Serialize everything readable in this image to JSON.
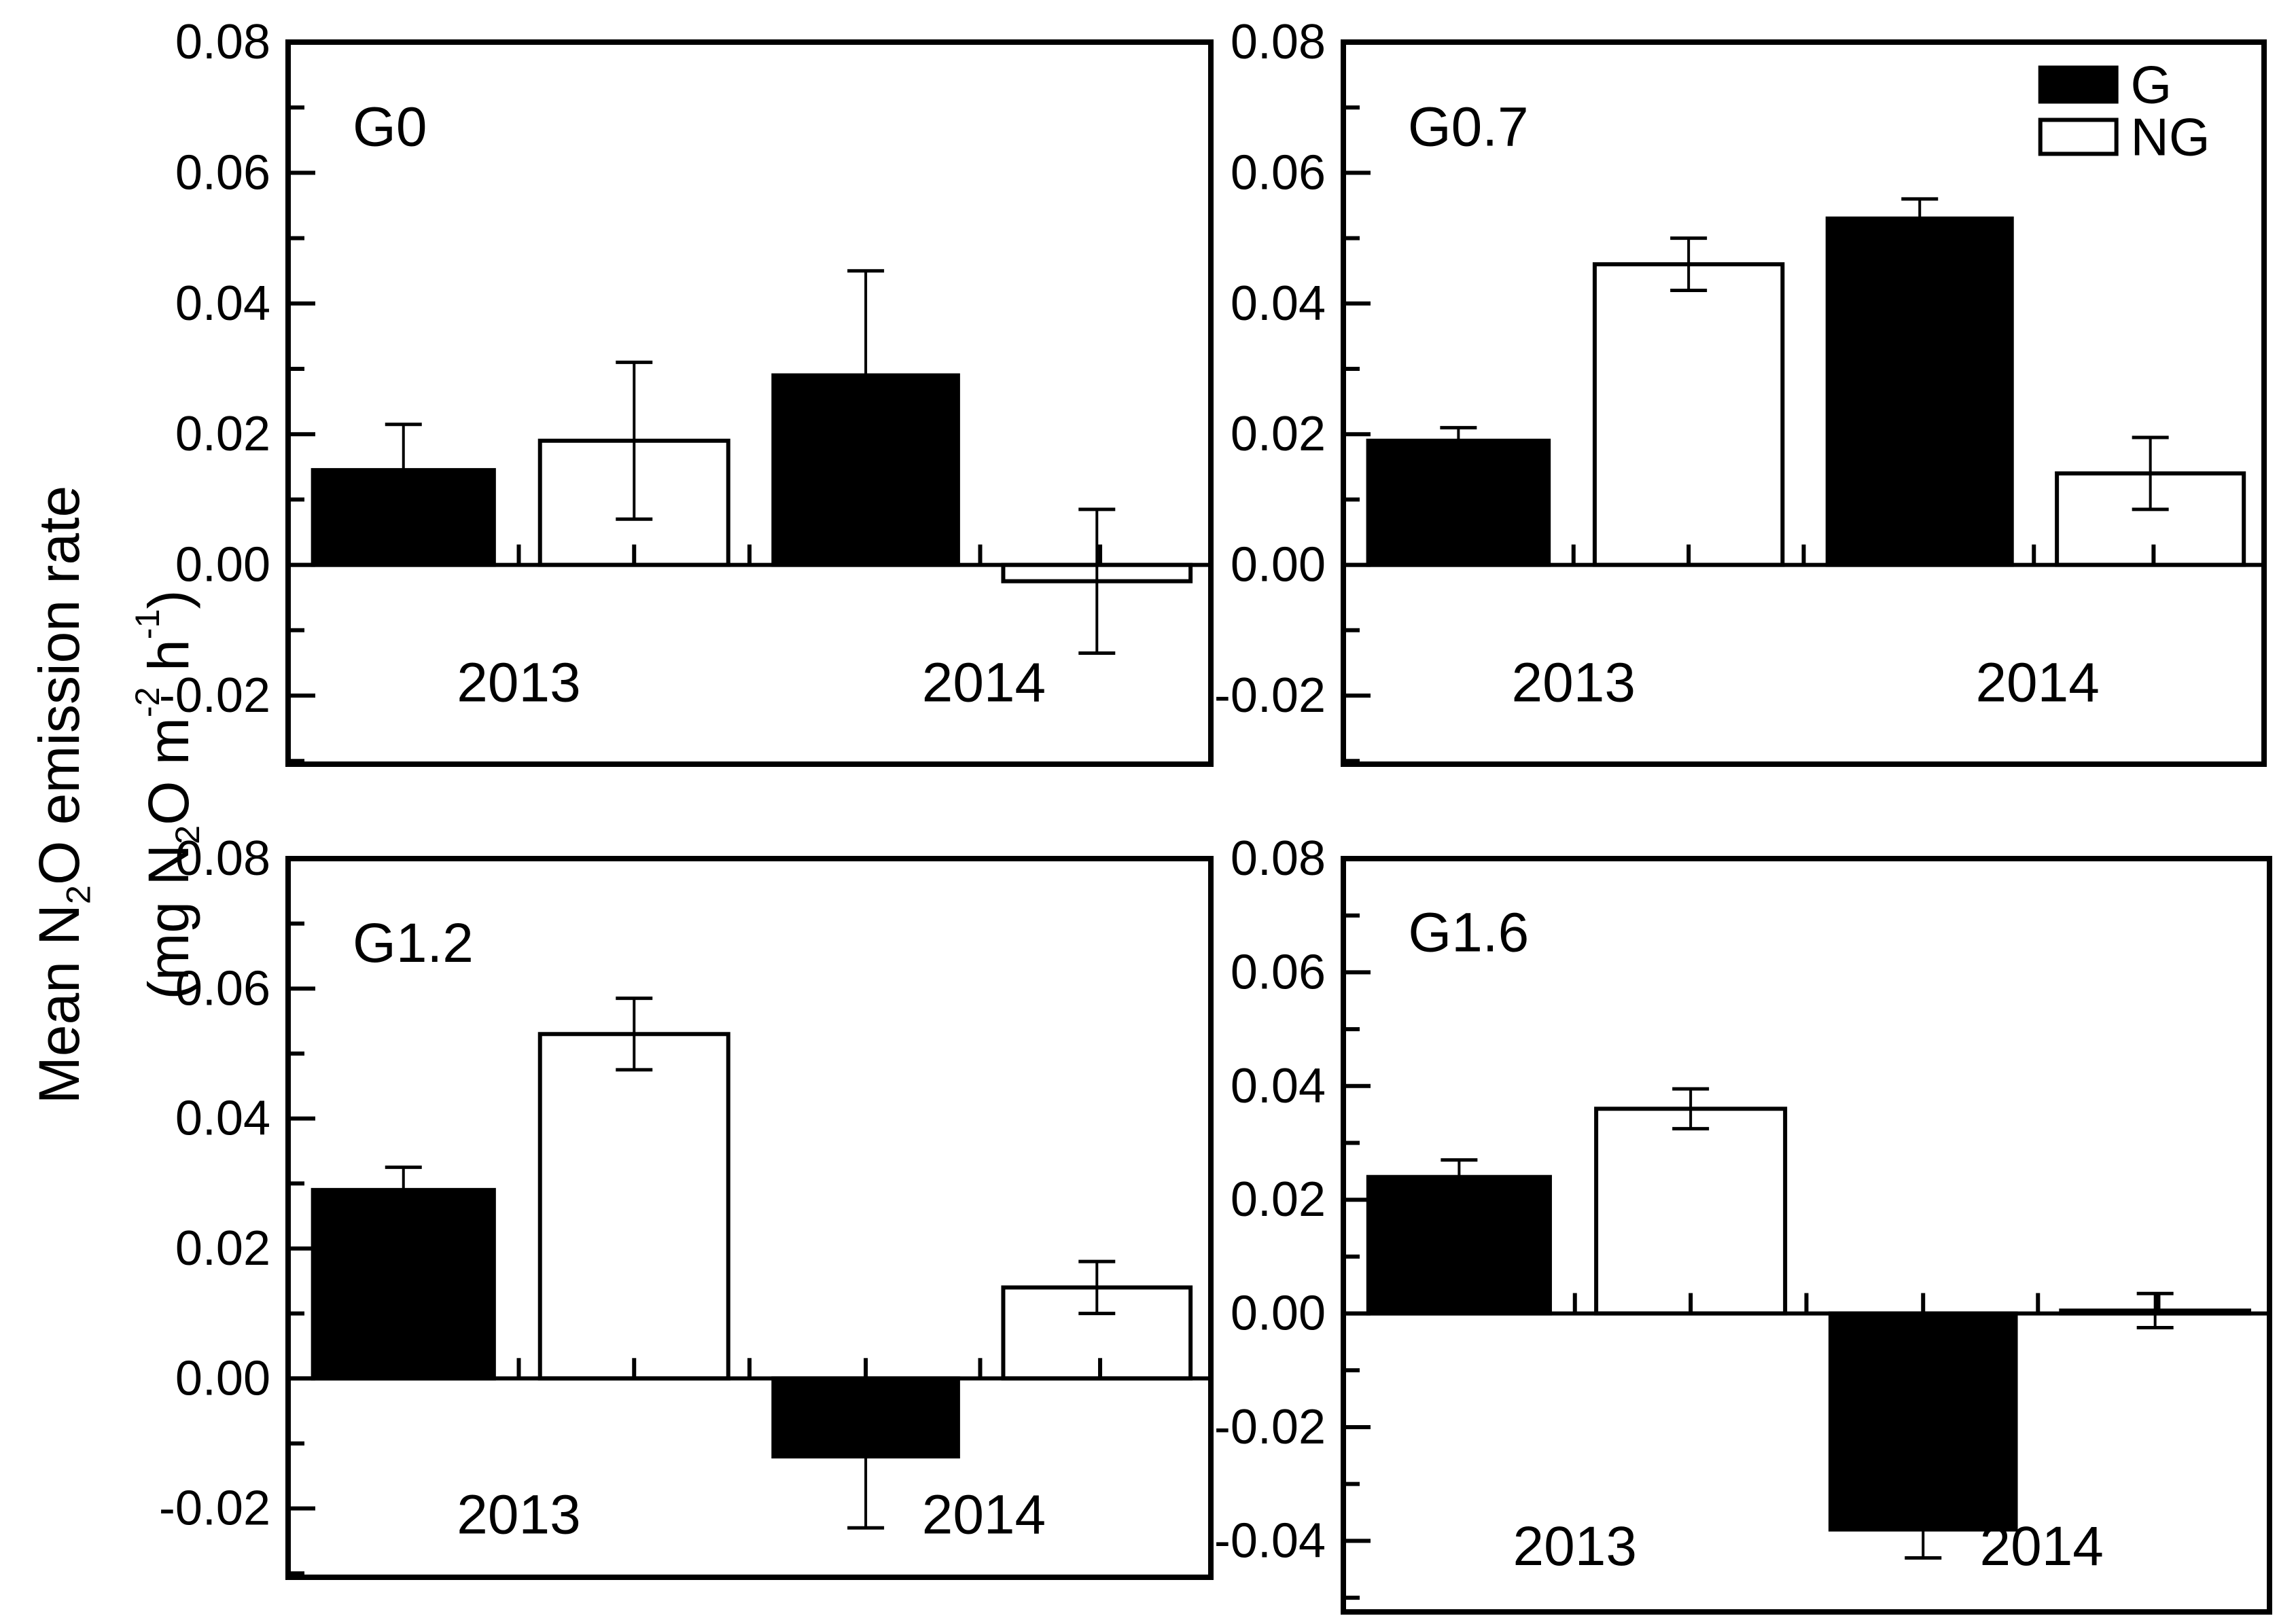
{
  "figure": {
    "y_axis_title_text": "Mean N₂O emission rate (mg N₂O m⁻² h⁻¹)",
    "y_axis_title": {
      "line1_segments": [
        [
          "Mean N",
          ""
        ],
        [
          "2",
          "sub"
        ],
        [
          "O emission rate",
          ""
        ]
      ],
      "line2_segments": [
        [
          "(mg N",
          ""
        ],
        [
          "2",
          "sub"
        ],
        [
          "O m",
          ""
        ],
        [
          "-2",
          "sup"
        ],
        [
          " h",
          ""
        ],
        [
          "-1",
          "sup"
        ],
        [
          ")",
          ""
        ]
      ]
    },
    "colors": {
      "foreground": "#000000",
      "background": "#ffffff",
      "bar_g": "#000000",
      "bar_ng": "#ffffff"
    },
    "legend": {
      "entries": [
        {
          "label": "G",
          "fill": "#000000"
        },
        {
          "label": "NG",
          "fill": "#ffffff"
        }
      ]
    }
  },
  "chart_data": [
    {
      "type": "bar",
      "panel_label": "G0",
      "categories": [
        "2013",
        "2014"
      ],
      "series": [
        {
          "name": "G",
          "fill": "#000000",
          "values": [
            0.0145,
            0.029
          ],
          "errors": [
            0.007,
            0.016
          ]
        },
        {
          "name": "NG",
          "fill": "#ffffff",
          "values": [
            0.019,
            -0.0025
          ],
          "errors": [
            0.012,
            0.011
          ]
        }
      ],
      "ylim": [
        -0.0305,
        0.08
      ],
      "yticks": [
        {
          "v": 0.08,
          "label": "0.08"
        },
        {
          "v": 0.06,
          "label": "0.06"
        },
        {
          "v": 0.04,
          "label": "0.04"
        },
        {
          "v": 0.02,
          "label": "0.02"
        },
        {
          "v": 0.0,
          "label": "0.00"
        },
        {
          "v": -0.02,
          "label": "-0.02"
        }
      ],
      "yminor": [
        0.07,
        0.05,
        0.03,
        0.01,
        -0.01,
        -0.03
      ],
      "show_legend": false
    },
    {
      "type": "bar",
      "panel_label": "G0.7",
      "categories": [
        "2013",
        "2014"
      ],
      "series": [
        {
          "name": "G",
          "fill": "#000000",
          "values": [
            0.019,
            0.053
          ],
          "errors": [
            0.002,
            0.003
          ]
        },
        {
          "name": "NG",
          "fill": "#ffffff",
          "values": [
            0.046,
            0.014
          ],
          "errors": [
            0.004,
            0.0055
          ]
        }
      ],
      "ylim": [
        -0.0305,
        0.08
      ],
      "yticks": [
        {
          "v": 0.08,
          "label": "0.08"
        },
        {
          "v": 0.06,
          "label": "0.06"
        },
        {
          "v": 0.04,
          "label": "0.04"
        },
        {
          "v": 0.02,
          "label": "0.02"
        },
        {
          "v": 0.0,
          "label": "0.00"
        },
        {
          "v": -0.02,
          "label": "-0.02"
        }
      ],
      "yminor": [
        0.07,
        0.05,
        0.03,
        0.01,
        -0.01,
        -0.03
      ],
      "show_legend": true
    },
    {
      "type": "bar",
      "panel_label": "G1.2",
      "categories": [
        "2013",
        "2014"
      ],
      "series": [
        {
          "name": "G",
          "fill": "#000000",
          "values": [
            0.029,
            -0.012
          ],
          "errors": [
            0.0035,
            0.011
          ]
        },
        {
          "name": "NG",
          "fill": "#ffffff",
          "values": [
            0.053,
            0.014
          ],
          "errors": [
            0.0055,
            0.004
          ]
        }
      ],
      "ylim": [
        -0.0306,
        0.08
      ],
      "yticks": [
        {
          "v": 0.08,
          "label": "0.08"
        },
        {
          "v": 0.06,
          "label": "0.06"
        },
        {
          "v": 0.04,
          "label": "0.04"
        },
        {
          "v": 0.02,
          "label": "0.02"
        },
        {
          "v": 0.0,
          "label": "0.00"
        },
        {
          "v": -0.02,
          "label": "-0.02"
        }
      ],
      "yminor": [
        0.07,
        0.05,
        0.03,
        0.01,
        -0.01,
        -0.03
      ],
      "show_legend": false
    },
    {
      "type": "bar",
      "panel_label": "G1.6",
      "categories": [
        "2013",
        "2014"
      ],
      "series": [
        {
          "name": "G",
          "fill": "#000000",
          "values": [
            0.024,
            -0.038
          ],
          "errors": [
            0.003,
            0.005
          ]
        },
        {
          "name": "NG",
          "fill": "#ffffff",
          "values": [
            0.036,
            0.0005
          ],
          "errors": [
            0.0035,
            0.003
          ]
        }
      ],
      "ylim": [
        -0.0525,
        0.08
      ],
      "yticks": [
        {
          "v": 0.08,
          "label": "0.08"
        },
        {
          "v": 0.06,
          "label": "0.06"
        },
        {
          "v": 0.04,
          "label": "0.04"
        },
        {
          "v": 0.02,
          "label": "0.02"
        },
        {
          "v": 0.0,
          "label": "0.00"
        },
        {
          "v": -0.02,
          "label": "-0.02"
        },
        {
          "v": -0.04,
          "label": "-0.04"
        }
      ],
      "yminor": [
        0.07,
        0.05,
        0.03,
        0.01,
        -0.01,
        -0.03,
        -0.05
      ],
      "show_legend": false
    }
  ]
}
